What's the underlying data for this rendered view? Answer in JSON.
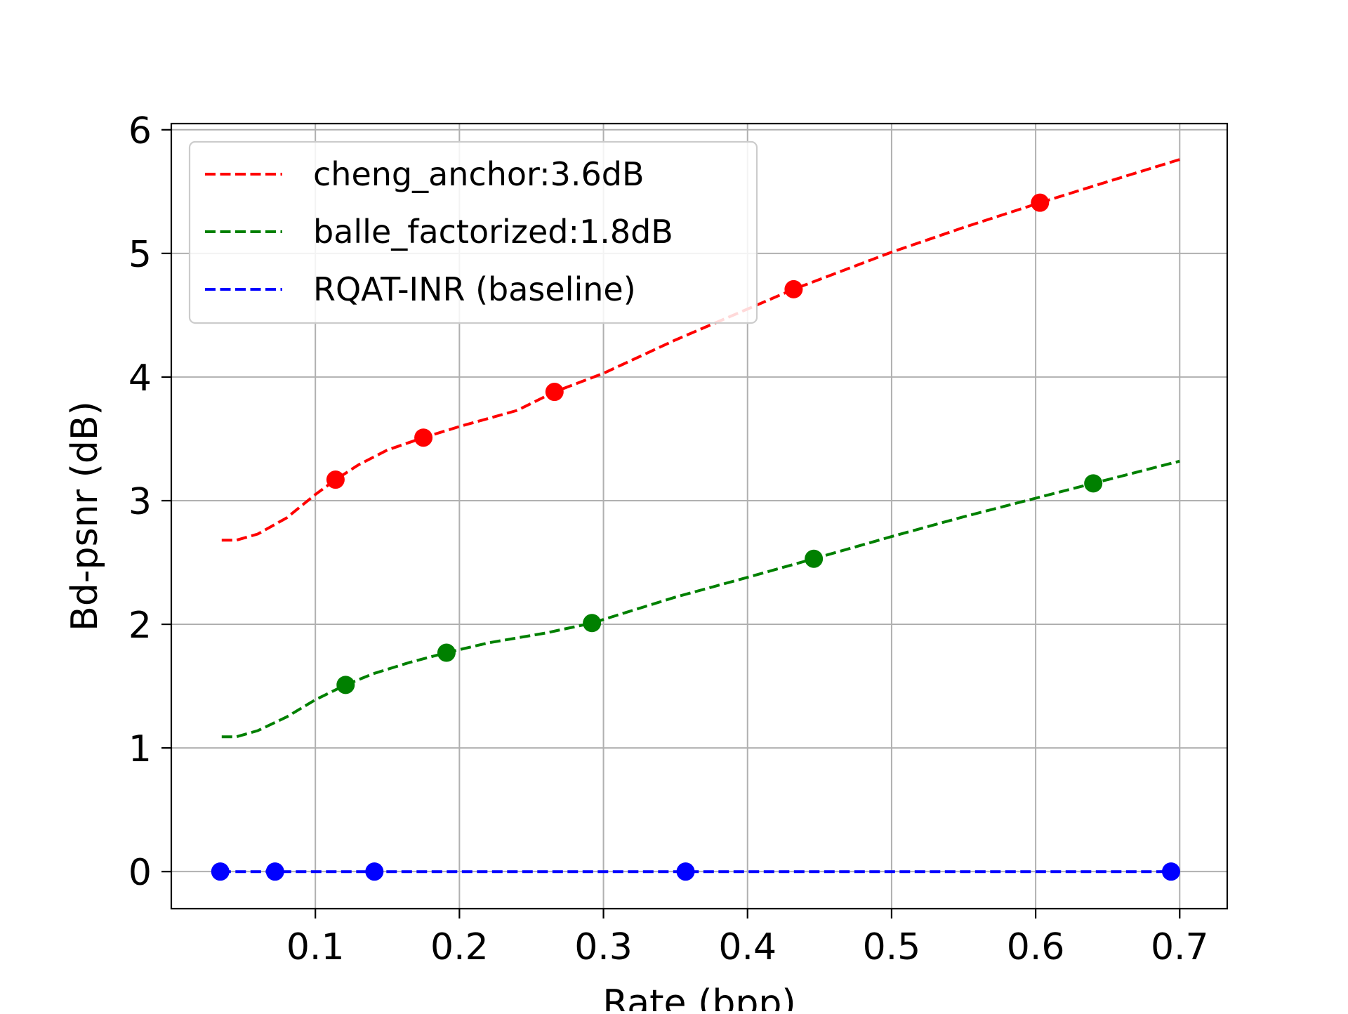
{
  "chart_data": {
    "type": "line",
    "xlabel": "Rate (bpp)",
    "ylabel": "Bd-psnr (dB)",
    "xlim": [
      0.0,
      0.733
    ],
    "ylim": [
      -0.3,
      6.05
    ],
    "x_ticks": [
      0.1,
      0.2,
      0.3,
      0.4,
      0.5,
      0.6,
      0.7
    ],
    "x_tick_labels": [
      "0.1",
      "0.2",
      "0.3",
      "0.4",
      "0.5",
      "0.6",
      "0.7"
    ],
    "y_ticks": [
      0,
      1,
      2,
      3,
      4,
      5,
      6
    ],
    "y_tick_labels": [
      "0",
      "1",
      "2",
      "3",
      "4",
      "5",
      "6"
    ],
    "grid": true,
    "legend_position": "upper-left",
    "series": [
      {
        "name": "cheng_anchor:3.6dB",
        "color": "#ff0000",
        "line_style": "dashed",
        "points_x": [
          0.114,
          0.175,
          0.266,
          0.432,
          0.603
        ],
        "points_y": [
          3.17,
          3.51,
          3.88,
          4.71,
          5.41
        ],
        "curve_x": [
          0.035,
          0.045,
          0.06,
          0.08,
          0.1,
          0.114,
          0.13,
          0.15,
          0.175,
          0.2,
          0.24,
          0.266,
          0.3,
          0.35,
          0.4,
          0.432,
          0.5,
          0.55,
          0.603,
          0.65,
          0.7
        ],
        "curve_y": [
          2.68,
          2.68,
          2.73,
          2.86,
          3.05,
          3.17,
          3.29,
          3.41,
          3.51,
          3.6,
          3.73,
          3.88,
          4.03,
          4.3,
          4.55,
          4.71,
          5.01,
          5.21,
          5.41,
          5.58,
          5.76
        ]
      },
      {
        "name": "balle_factorized:1.8dB",
        "color": "#008000",
        "line_style": "dashed",
        "points_x": [
          0.121,
          0.191,
          0.292,
          0.446,
          0.64
        ],
        "points_y": [
          1.51,
          1.77,
          2.01,
          2.53,
          3.14
        ],
        "curve_x": [
          0.035,
          0.045,
          0.06,
          0.08,
          0.1,
          0.121,
          0.14,
          0.165,
          0.191,
          0.22,
          0.26,
          0.292,
          0.35,
          0.4,
          0.446,
          0.5,
          0.55,
          0.6,
          0.64,
          0.7
        ],
        "curve_y": [
          1.09,
          1.09,
          1.14,
          1.25,
          1.39,
          1.51,
          1.6,
          1.69,
          1.77,
          1.85,
          1.93,
          2.01,
          2.22,
          2.38,
          2.53,
          2.71,
          2.87,
          3.02,
          3.14,
          3.32
        ]
      },
      {
        "name": "RQAT-INR (baseline)",
        "color": "#0000ff",
        "line_style": "dashed",
        "points_x": [
          0.034,
          0.072,
          0.141,
          0.357,
          0.694
        ],
        "points_y": [
          0,
          0,
          0,
          0,
          0
        ],
        "curve_x": [
          0.034,
          0.694
        ],
        "curve_y": [
          0,
          0
        ]
      }
    ]
  }
}
